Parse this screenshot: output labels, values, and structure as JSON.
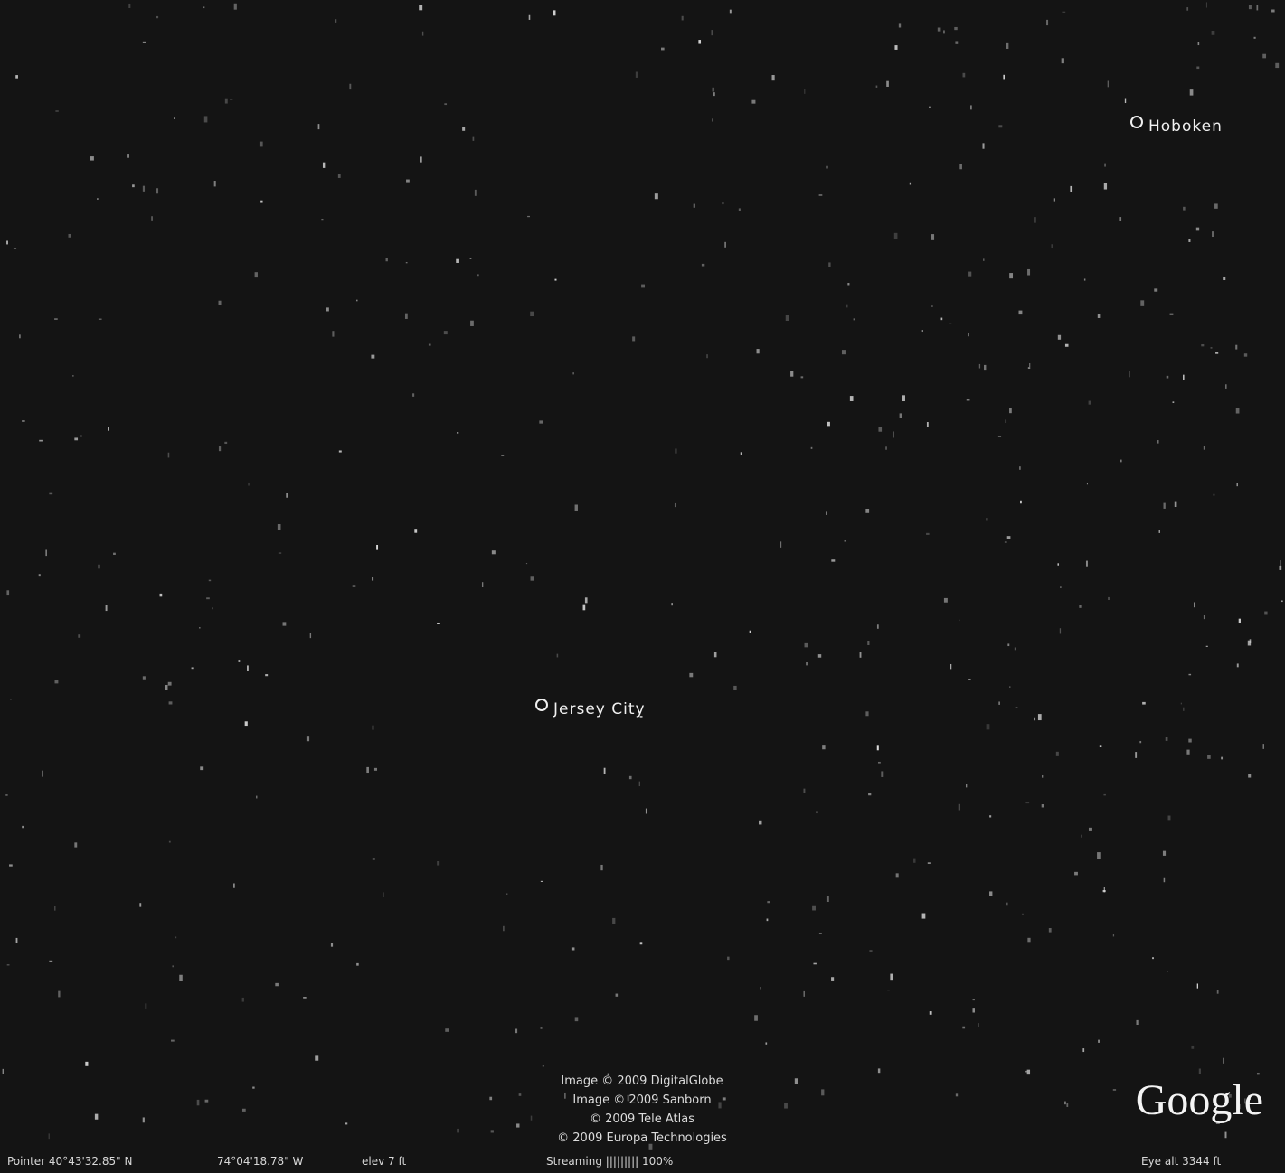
{
  "places": [
    {
      "label": "Hoboken"
    },
    {
      "label": "Jersey City"
    }
  ],
  "attribution": [
    "Image © 2009 DigitalGlobe",
    "Image © 2009 Sanborn",
    "© 2009 Tele Atlas",
    "© 2009 Europa Technologies"
  ],
  "status": {
    "pointer": "Pointer 40°43'32.85\" N",
    "longitude": "74°04'18.78\" W",
    "elevation": "elev 7 ft",
    "streaming": "Streaming ||||||||| 100%",
    "eye_alt": "Eye alt 3344 ft"
  },
  "logo": "Google"
}
